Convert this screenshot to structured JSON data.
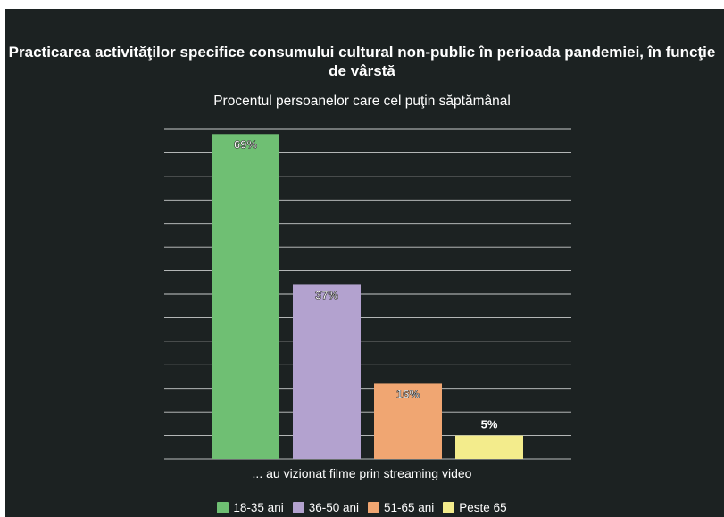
{
  "chart_data": {
    "type": "bar",
    "title": "Practicarea activităţilor specifice consumului cultural non-public în perioada pandemiei, în funcţie de vârstă",
    "subtitle": "Procentul persoanelor care cel puţin săptămânal",
    "categories": [
      "... au vizionat filme prin streaming video"
    ],
    "series": [
      {
        "name": "18-35 ani",
        "values": [
          69
        ],
        "label": "69%",
        "color": "#6fbf73"
      },
      {
        "name": "36-50 ani",
        "values": [
          37
        ],
        "label": "37%",
        "color": "#b3a2cf"
      },
      {
        "name": "51-65 ani",
        "values": [
          16
        ],
        "label": "16%",
        "color": "#f0a672"
      },
      {
        "name": "Peste 65",
        "values": [
          5
        ],
        "label": "5%",
        "color": "#f3ec8c"
      }
    ],
    "ylim": [
      0,
      70
    ],
    "grid": true,
    "legend_position": "bottom"
  }
}
